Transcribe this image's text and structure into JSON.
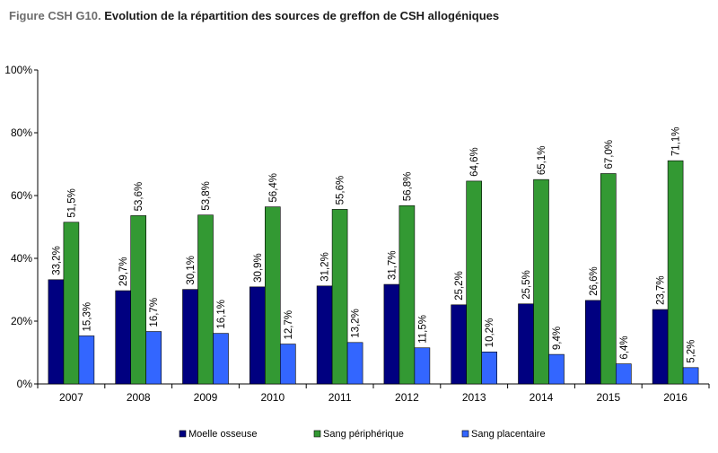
{
  "title": {
    "prefix": "Figure CSH G10.",
    "text": "Evolution de la répartition des sources de greffon de CSH allogéniques"
  },
  "chart_data": {
    "type": "bar",
    "categories": [
      "2007",
      "2008",
      "2009",
      "2010",
      "2011",
      "2012",
      "2013",
      "2014",
      "2015",
      "2016"
    ],
    "series": [
      {
        "name": "Moelle osseuse",
        "color": "#000080",
        "values": [
          33.2,
          29.7,
          30.1,
          30.9,
          31.2,
          31.7,
          25.2,
          25.5,
          26.6,
          23.7
        ],
        "labels": [
          "33,2%",
          "29,7%",
          "30,1%",
          "30,9%",
          "31,2%",
          "31,7%",
          "25,2%",
          "25,5%",
          "26,6%",
          "23,7%"
        ]
      },
      {
        "name": "Sang périphérique",
        "color": "#339933",
        "values": [
          51.5,
          53.6,
          53.8,
          56.4,
          55.6,
          56.8,
          64.6,
          65.1,
          67.0,
          71.1
        ],
        "labels": [
          "51,5%",
          "53,6%",
          "53,8%",
          "56,4%",
          "55,6%",
          "56,8%",
          "64,6%",
          "65,1%",
          "67,0%",
          "71,1%"
        ]
      },
      {
        "name": "Sang placentaire",
        "color": "#3366ff",
        "values": [
          15.3,
          16.7,
          16.1,
          12.7,
          13.2,
          11.5,
          10.2,
          9.4,
          6.4,
          5.2
        ],
        "labels": [
          "15,3%",
          "16,7%",
          "16,1%",
          "12,7%",
          "13,2%",
          "11,5%",
          "10,2%",
          "9,4%",
          "6,4%",
          "5,2%"
        ]
      }
    ],
    "ylim": [
      0,
      100
    ],
    "yticks": [
      0,
      20,
      40,
      60,
      80,
      100
    ],
    "ytick_labels": [
      "0%",
      "20%",
      "40%",
      "60%",
      "80%",
      "100%"
    ],
    "xlabel": "",
    "ylabel": "",
    "grid": false,
    "legend": "bottom"
  }
}
